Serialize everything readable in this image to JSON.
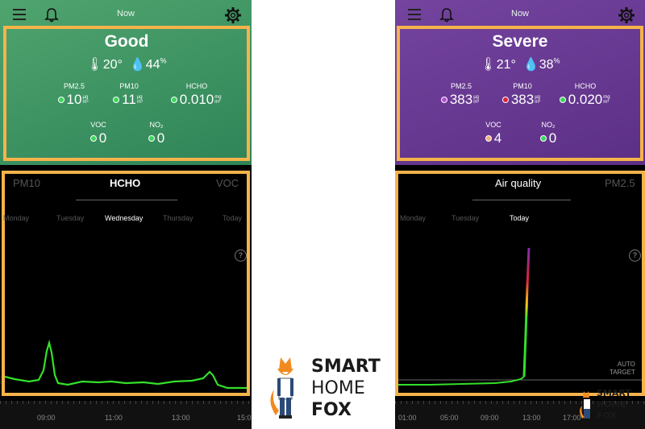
{
  "left": {
    "now_label": "Now",
    "status": "Good",
    "temperature": "20°",
    "humidity": "44",
    "humidity_unit": "%",
    "sensors": [
      {
        "label": "PM2.5",
        "value": "10",
        "unit_top": "µg",
        "unit_bottom": "m³",
        "dot": "#3ad65a"
      },
      {
        "label": "PM10",
        "value": "11",
        "unit_top": "µg",
        "unit_bottom": "m³",
        "dot": "#3ad65a"
      },
      {
        "label": "HCHO",
        "value": "0.010",
        "unit_top": "mg",
        "unit_bottom": "m³",
        "dot": "#3ad65a"
      },
      {
        "label": "VOC",
        "value": "0",
        "unit_top": "",
        "unit_bottom": "",
        "dot": "#3ad65a"
      },
      {
        "label": "NO₂",
        "value": "0",
        "unit_top": "",
        "unit_bottom": "",
        "dot": "#3ad65a"
      }
    ],
    "tabs": {
      "prev": "PM10",
      "active": "HCHO",
      "next": "VOC"
    },
    "days": [
      "Monday",
      "Tuesday",
      "Wednesday",
      "Thursday",
      "Today"
    ],
    "active_day": "Wednesday",
    "time_ticks": [
      "09:00",
      "11:00",
      "13:00",
      "15:0"
    ],
    "bg_color": "#3f9462",
    "line_color": "#34e02a"
  },
  "right": {
    "now_label": "Now",
    "status": "Severe",
    "temperature": "21°",
    "humidity": "38",
    "humidity_unit": "%",
    "sensors": [
      {
        "label": "PM2.5",
        "value": "383",
        "unit_top": "µg",
        "unit_bottom": "m³",
        "dot": "#b34ad6"
      },
      {
        "label": "PM10",
        "value": "383",
        "unit_top": "µg",
        "unit_bottom": "m³",
        "dot": "#e0203a"
      },
      {
        "label": "HCHO",
        "value": "0.020",
        "unit_top": "mg",
        "unit_bottom": "m³",
        "dot": "#3ad65a"
      },
      {
        "label": "VOC",
        "value": "4",
        "unit_top": "",
        "unit_bottom": "",
        "dot": "#f0b080"
      },
      {
        "label": "NO₂",
        "value": "0",
        "unit_top": "",
        "unit_bottom": "",
        "dot": "#3ad65a"
      }
    ],
    "tabs": {
      "active": "Air quality",
      "next": "PM2.5"
    },
    "days": [
      "Monday",
      "Tuesday",
      "Today"
    ],
    "active_day": "Today",
    "time_ticks": [
      "01:00",
      "05:00",
      "09:00",
      "13:00",
      "17:00"
    ],
    "auto_target": [
      "AUTO",
      "TARGET"
    ],
    "bg_color": "#6a3d96",
    "line_color": "#34e02a"
  },
  "logo": {
    "line1": "SMART",
    "line2": "HOME",
    "line3": "FOX"
  },
  "watermark": {
    "line1": "SMART",
    "line2": "HOME",
    "line3": "FOX"
  }
}
